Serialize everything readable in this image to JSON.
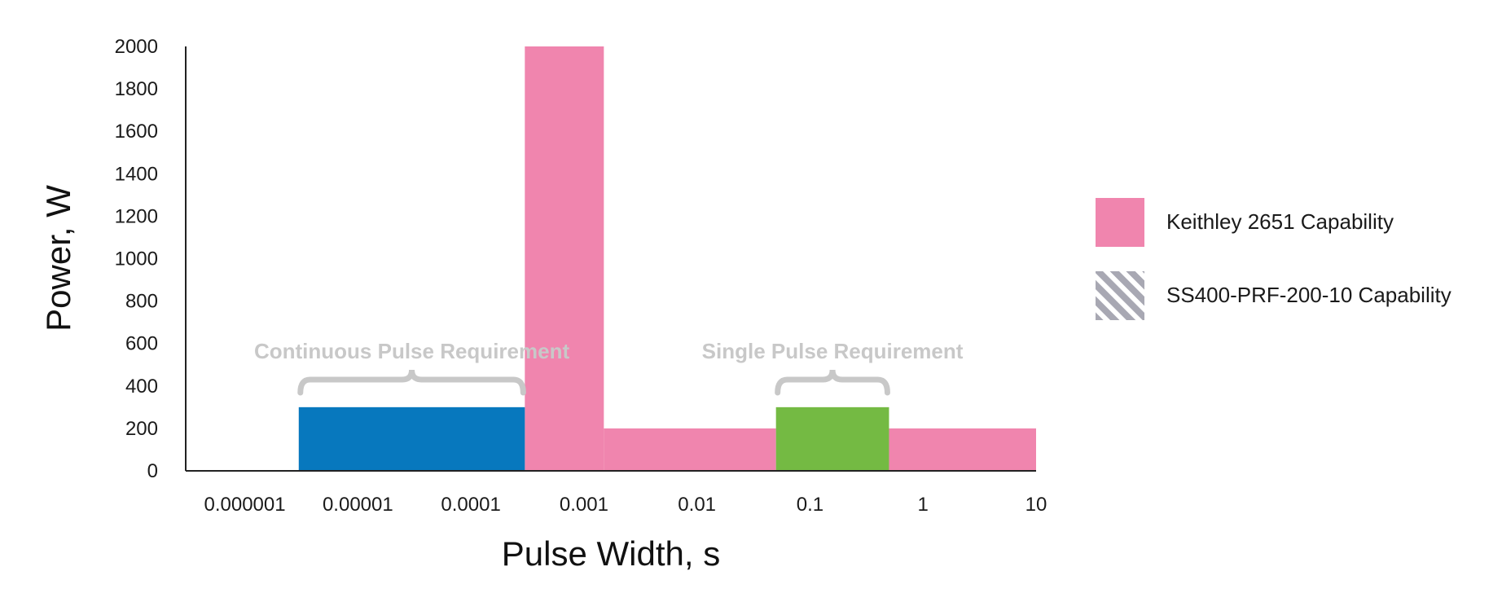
{
  "chart_data": {
    "type": "bar",
    "xlabel": "Pulse Width, s",
    "ylabel": "Power, W",
    "x_scale": "log",
    "x_ticks": [
      "0.000001",
      "0.00001",
      "0.0001",
      "0.001",
      "0.01",
      "0.1",
      "1",
      "10"
    ],
    "y_ticks": [
      "0",
      "200",
      "400",
      "600",
      "800",
      "1000",
      "1200",
      "1400",
      "1600",
      "1800",
      "2000"
    ],
    "ylim": [
      0,
      2000
    ],
    "grid": false,
    "legend_placement": "right",
    "series": [
      {
        "name": "Keithley 2651 Capability",
        "color": "#F085AE",
        "bars": [
          {
            "x_start": 0.0003,
            "x_end": 0.0015,
            "value": 2000
          },
          {
            "x_start": 0.0015,
            "x_end": 0.05,
            "value": 200
          },
          {
            "x_start": 0.5,
            "x_end": 10,
            "value": 200
          }
        ]
      },
      {
        "name": "SS400-PRF-200-10 Capability",
        "color": "#A8A8B3",
        "pattern": "diagonal-hatch",
        "bars": []
      },
      {
        "color": "#0778BE",
        "bars": [
          {
            "x_start": 3e-06,
            "x_end": 0.0003,
            "value": 300
          }
        ]
      },
      {
        "color": "#74BA43",
        "bars": [
          {
            "x_start": 0.05,
            "x_end": 0.5,
            "value": 300
          }
        ]
      }
    ],
    "annotations": [
      {
        "text": "Continuous Pulse Requirement",
        "x_start": 3e-06,
        "x_end": 0.0003
      },
      {
        "text": "Single Pulse Requirement",
        "x_start": 0.05,
        "x_end": 0.5
      }
    ]
  }
}
